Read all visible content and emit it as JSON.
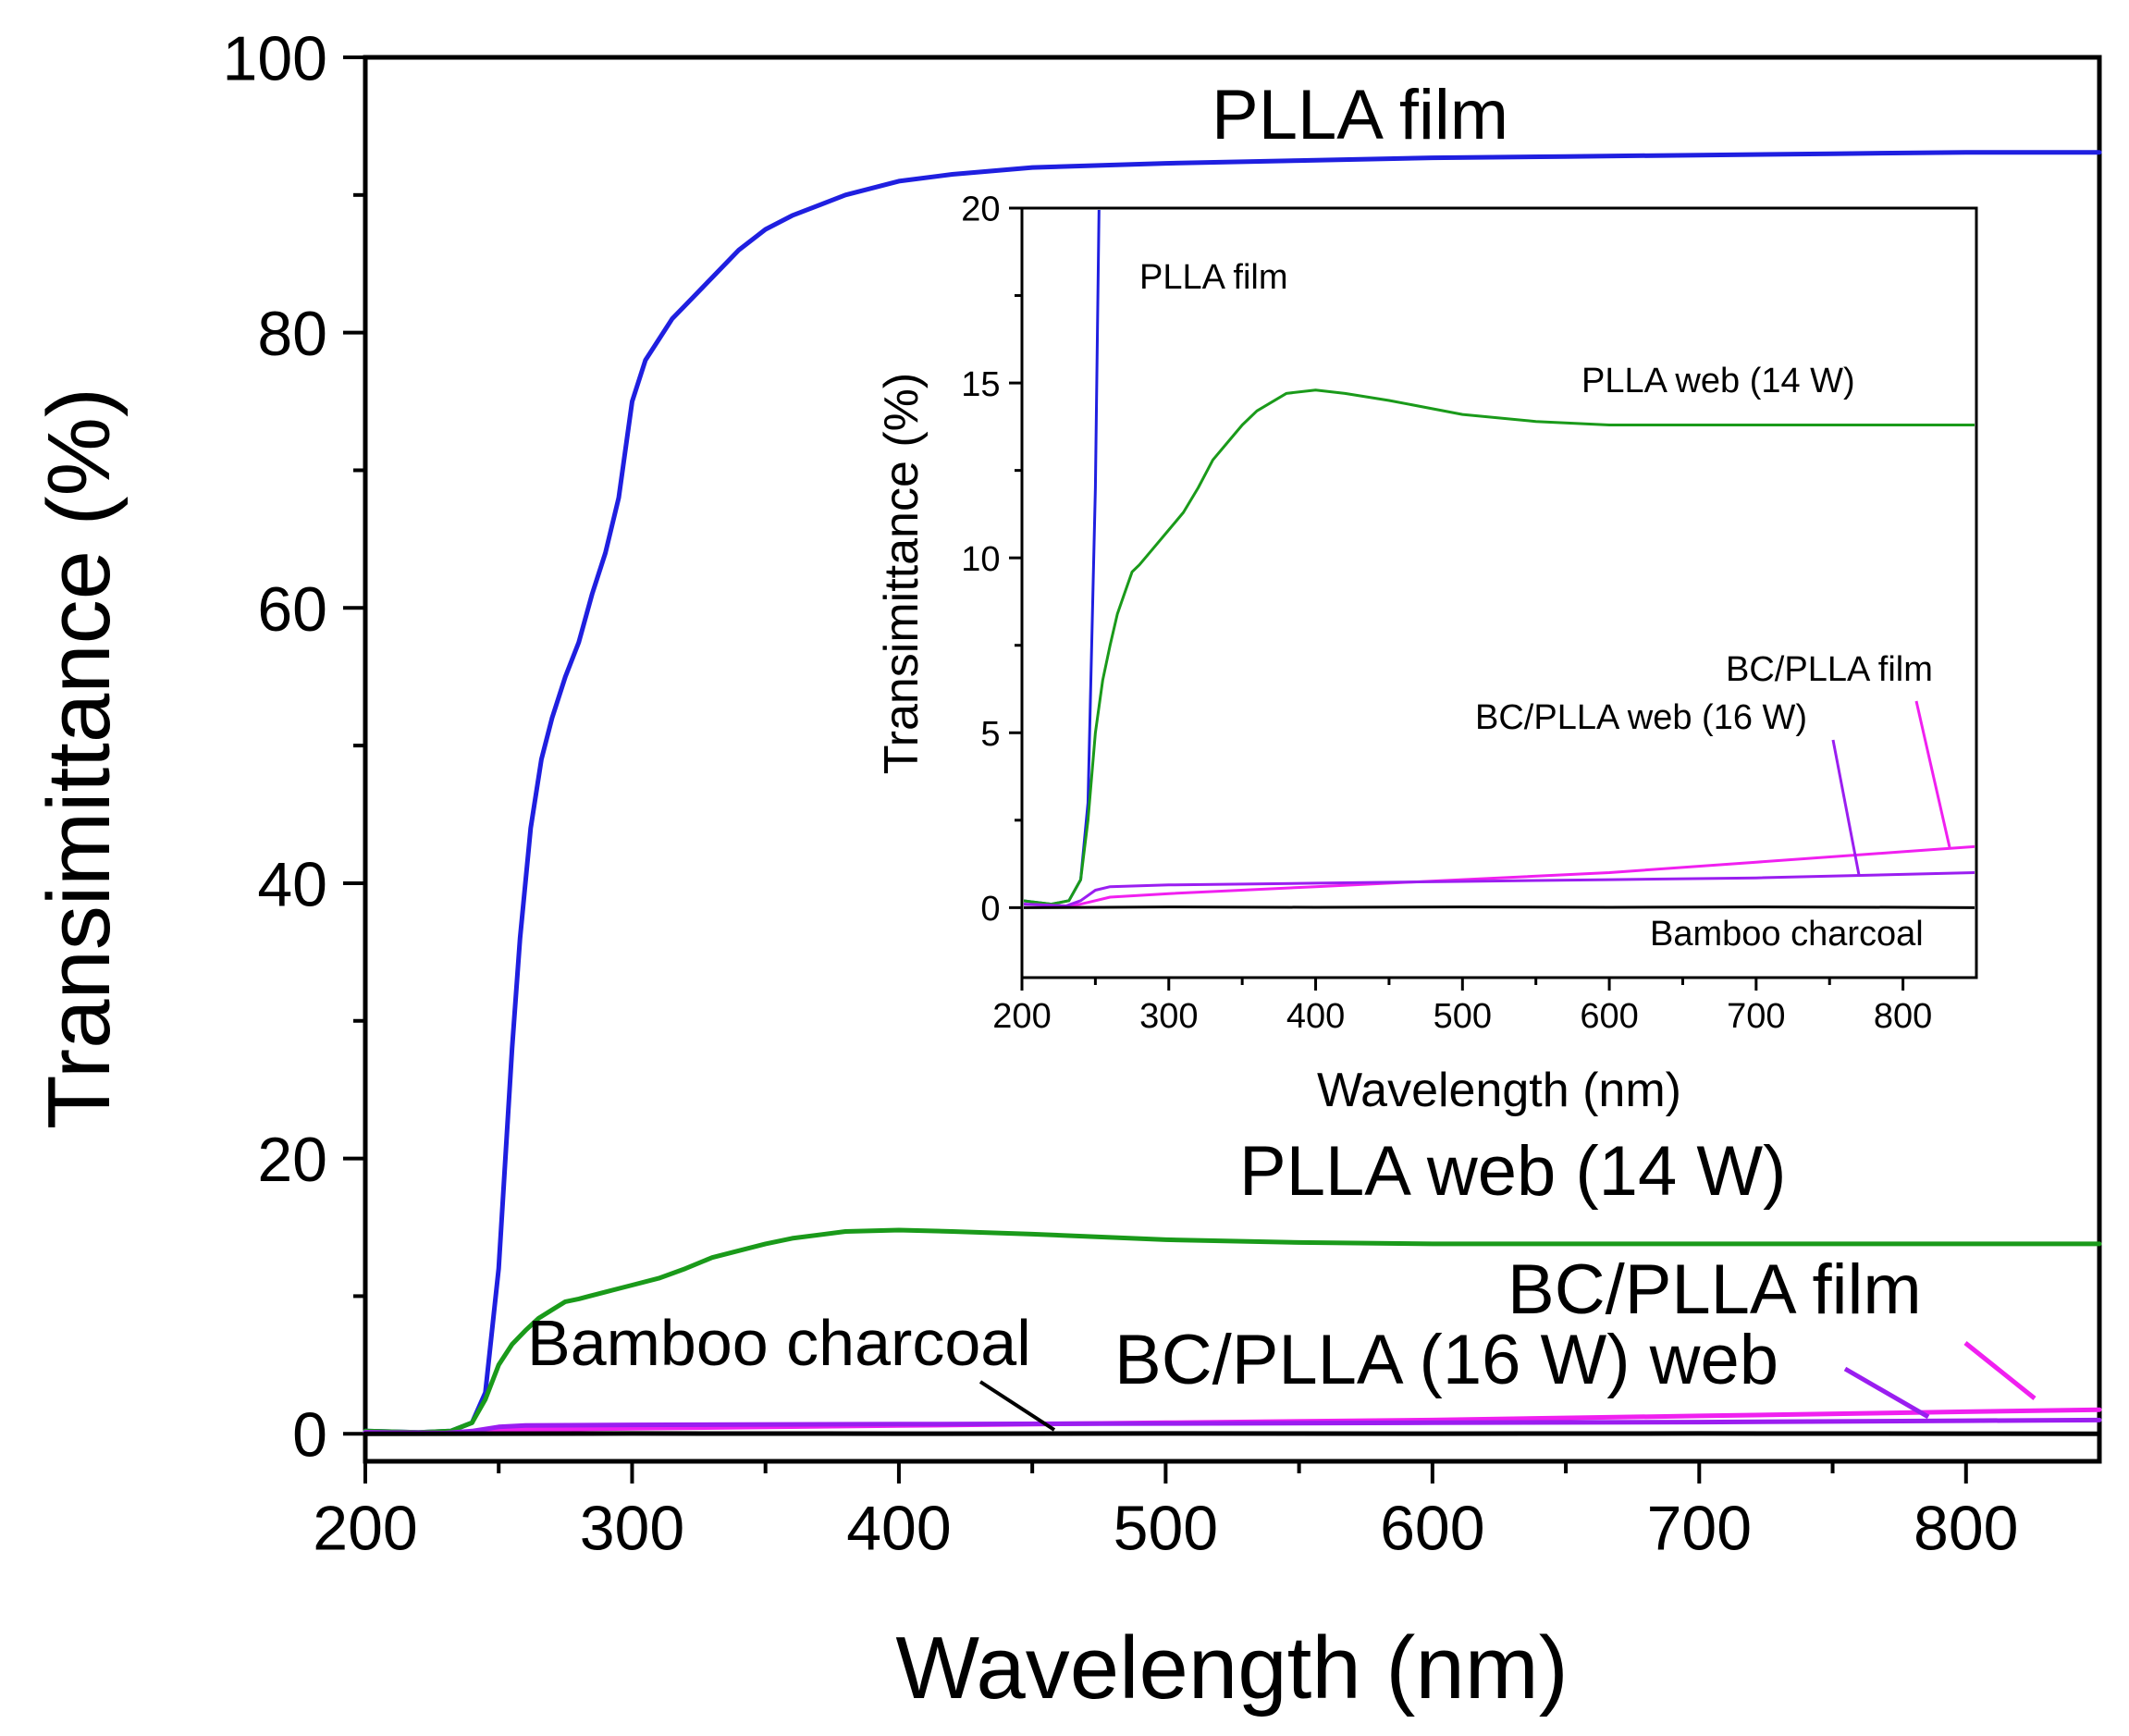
{
  "chart_data": [
    {
      "type": "line",
      "role": "main",
      "xlabel": "Wavelength (nm)",
      "ylabel": "Transimittance (%)",
      "xlim": [
        200,
        850
      ],
      "ylim": [
        -2,
        100
      ],
      "xticks": [
        200,
        300,
        400,
        500,
        600,
        700,
        800
      ],
      "yticks": [
        0,
        20,
        40,
        60,
        80,
        100
      ],
      "series": [
        {
          "name": "PLLA film",
          "color": "#1f1fe0",
          "label": "PLLA film",
          "x": [
            200,
            220,
            232,
            240,
            245,
            250,
            255,
            258,
            262,
            266,
            270,
            275,
            280,
            285,
            290,
            295,
            300,
            305,
            310,
            315,
            320,
            330,
            340,
            350,
            360,
            380,
            400,
            420,
            450,
            500,
            550,
            600,
            650,
            700,
            750,
            800,
            850
          ],
          "y": [
            0.2,
            0.1,
            0.2,
            0.8,
            3,
            12,
            28,
            36,
            44,
            49,
            52,
            55,
            57.5,
            61,
            64,
            68,
            75,
            78,
            79.5,
            81,
            82,
            84,
            86,
            87.5,
            88.5,
            90,
            91,
            91.5,
            92,
            92.3,
            92.5,
            92.7,
            92.8,
            92.9,
            93,
            93.1,
            93.1
          ]
        },
        {
          "name": "PLLA web (14 W)",
          "color": "#1a9a1a",
          "label": "PLLA web (14 W)",
          "x": [
            200,
            220,
            232,
            240,
            245,
            250,
            255,
            260,
            265,
            270,
            275,
            280,
            290,
            300,
            310,
            320,
            330,
            340,
            350,
            360,
            380,
            400,
            420,
            450,
            500,
            550,
            600,
            650,
            700,
            750,
            800,
            850
          ],
          "y": [
            0.2,
            0.1,
            0.2,
            0.8,
            2.5,
            5,
            6.5,
            7.5,
            8.4,
            9.0,
            9.6,
            9.8,
            10.3,
            10.8,
            11.3,
            12.0,
            12.8,
            13.3,
            13.8,
            14.2,
            14.7,
            14.8,
            14.7,
            14.5,
            14.1,
            13.9,
            13.8,
            13.8,
            13.8,
            13.8,
            13.8,
            13.8
          ]
        },
        {
          "name": "BC/PLLA film",
          "color": "#f020f0",
          "label": "BC/PLLA film",
          "x": [
            200,
            230,
            240,
            250,
            260,
            300,
            400,
            500,
            600,
            700,
            800,
            850
          ],
          "y": [
            0.1,
            0.05,
            0.1,
            0.2,
            0.3,
            0.4,
            0.6,
            0.8,
            1.0,
            1.3,
            1.6,
            1.75
          ]
        },
        {
          "name": "BC/PLLA web (16 W)",
          "color": "#9a1ef0",
          "label": "BC/PLLA (16 W) web",
          "x": [
            200,
            230,
            240,
            250,
            260,
            300,
            400,
            500,
            600,
            700,
            800,
            850
          ],
          "y": [
            0.1,
            0.05,
            0.2,
            0.5,
            0.6,
            0.65,
            0.7,
            0.75,
            0.8,
            0.85,
            0.95,
            1.0
          ]
        },
        {
          "name": "Bamboo charcoal",
          "color": "#000000",
          "label": "Bamboo charcoal",
          "x": [
            200,
            300,
            400,
            500,
            600,
            700,
            800,
            850
          ],
          "y": [
            0.0,
            0.02,
            0.01,
            0.02,
            0.01,
            0.02,
            0.01,
            0.0
          ]
        }
      ]
    },
    {
      "type": "line",
      "role": "inset",
      "xlabel": "Wavelength (nm)",
      "ylabel": "Transimittance (%)",
      "xlim": [
        200,
        850
      ],
      "ylim": [
        -2,
        20
      ],
      "xticks": [
        200,
        300,
        400,
        500,
        600,
        700,
        800
      ],
      "yticks": [
        0,
        5,
        10,
        15,
        20
      ],
      "labels": {
        "plla_film": "PLLA film",
        "plla_web": "PLLA web (14 W)",
        "bc_film": "BC/PLLA film",
        "bc_web": "BC/PLLA web (16 W)",
        "bamboo": "Bamboo charcoal"
      }
    }
  ]
}
